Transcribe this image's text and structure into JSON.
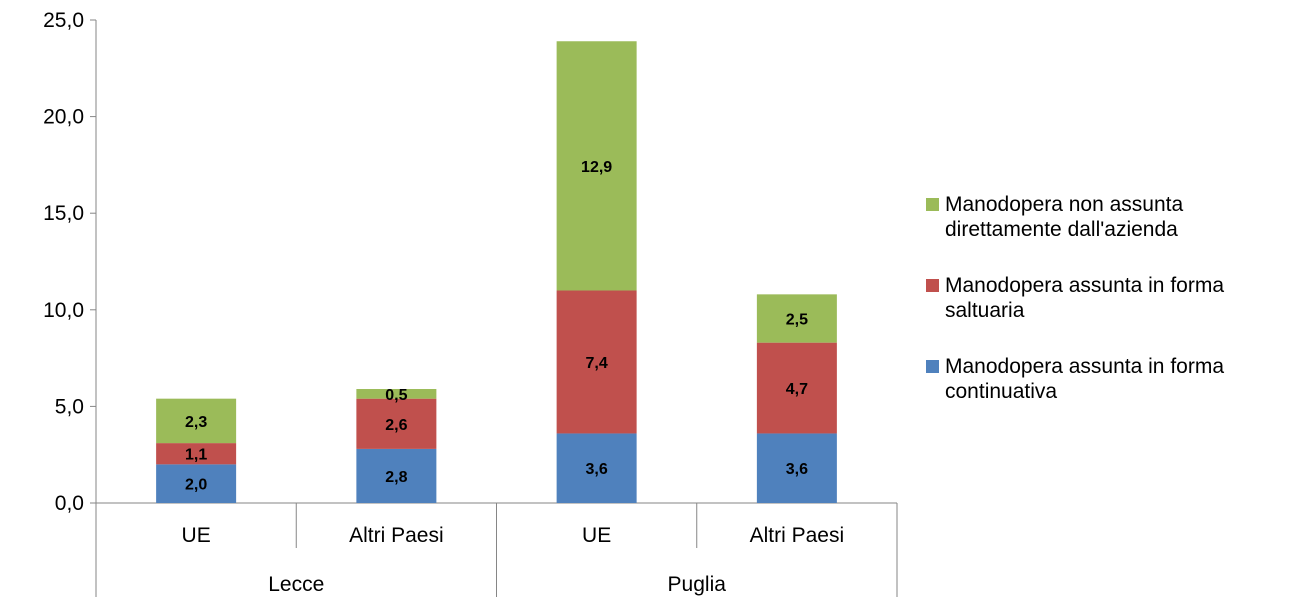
{
  "chart_data": {
    "type": "bar",
    "stacked": true,
    "title": "",
    "xlabel": "",
    "ylabel": "",
    "ylim": [
      0,
      25
    ],
    "yticks": [
      "0,0",
      "5,0",
      "10,0",
      "15,0",
      "20,0",
      "25,0"
    ],
    "grid": false,
    "legend_position": "right",
    "groups": [
      {
        "label": "Lecce",
        "categories": [
          "UE",
          "Altri Paesi"
        ]
      },
      {
        "label": "Puglia",
        "categories": [
          "UE",
          "Altri Paesi"
        ]
      }
    ],
    "categories": [
      "UE",
      "Altri Paesi",
      "UE",
      "Altri Paesi"
    ],
    "series": [
      {
        "name": "Manodopera assunta in forma continuativa",
        "color": "#4F81BD",
        "values": [
          2.0,
          2.8,
          3.6,
          3.6
        ],
        "labels": [
          "2,0",
          "2,8",
          "3,6",
          "3,6"
        ]
      },
      {
        "name": "Manodopera assunta in forma saltuaria",
        "color": "#C0504D",
        "values": [
          1.1,
          2.6,
          7.4,
          4.7
        ],
        "labels": [
          "1,1",
          "2,6",
          "7,4",
          "4,7"
        ]
      },
      {
        "name": "Manodopera non assunta direttamente dall'azienda",
        "color": "#9BBB59",
        "values": [
          2.3,
          0.5,
          12.9,
          2.5
        ],
        "labels": [
          "2,3",
          "0,5",
          "12,9",
          "2,5"
        ]
      }
    ],
    "legend_order": [
      {
        "label_lines": [
          "Manodopera non assunta",
          "direttamente dall'azienda"
        ],
        "color": "#9BBB59"
      },
      {
        "label_lines": [
          "Manodopera assunta in forma",
          "saltuaria"
        ],
        "color": "#C0504D"
      },
      {
        "label_lines": [
          "Manodopera assunta in forma",
          "continuativa"
        ],
        "color": "#4F81BD"
      }
    ]
  }
}
